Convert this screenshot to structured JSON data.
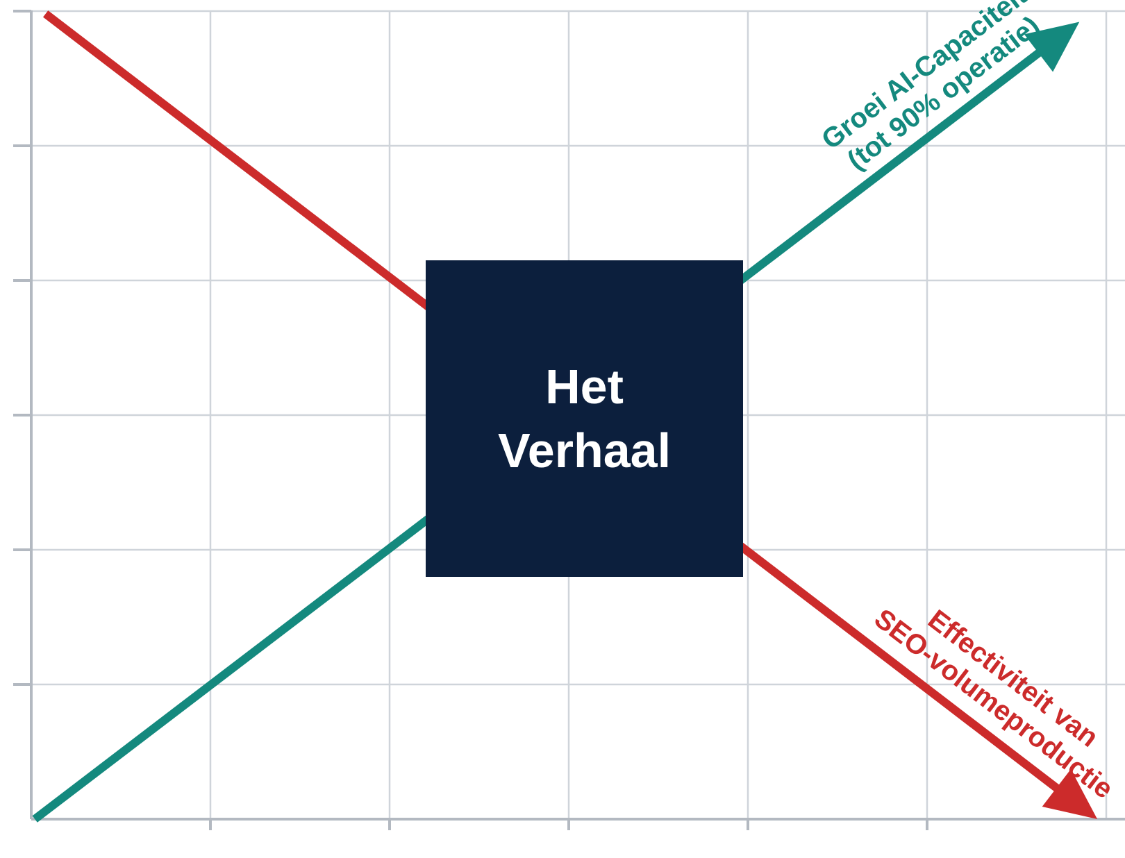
{
  "chart_data": {
    "type": "line",
    "title": "",
    "xlabel": "",
    "ylabel": "",
    "xlim": [
      0,
      6
    ],
    "ylim": [
      0,
      6
    ],
    "grid": true,
    "legend": "none",
    "center_label": {
      "lines": [
        "Het",
        "Verhaal"
      ],
      "background": "#0c1f3d",
      "text_color": "#ffffff"
    },
    "series": [
      {
        "label_lines": [
          "Groei AI-Capaciteit",
          "(tot 90% operatie)"
        ],
        "color": "#14897e",
        "direction": "rising",
        "arrow": true,
        "points": [
          [
            0.02,
            0.0
          ],
          [
            5.85,
            5.92
          ]
        ]
      },
      {
        "label_lines": [
          "Effectiviteit van",
          "SEO-volumeproductie"
        ],
        "color": "#cc2b2b",
        "direction": "falling",
        "arrow": true,
        "points": [
          [
            0.08,
            5.98
          ],
          [
            5.95,
            0.0
          ]
        ]
      }
    ]
  }
}
